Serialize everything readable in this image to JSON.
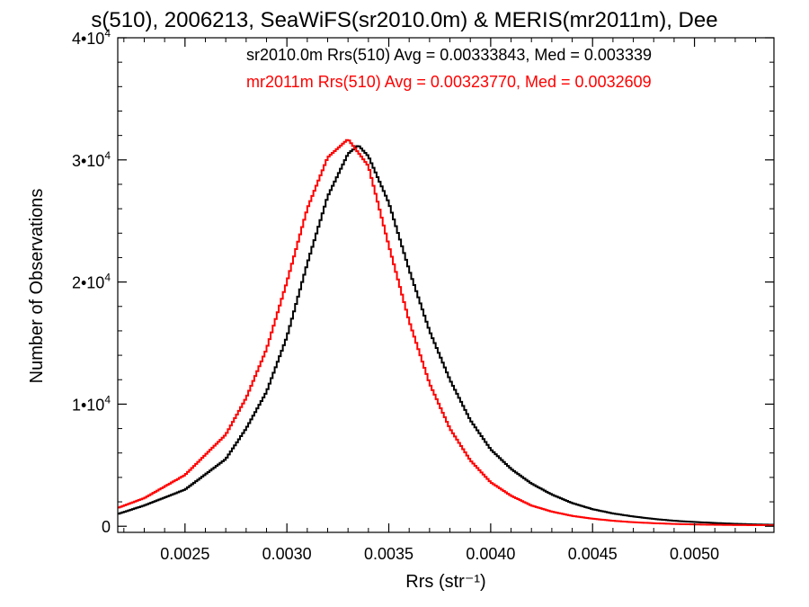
{
  "chart_data": {
    "type": "line",
    "title": "s(510), 2006213, SeaWiFS(sr2010.0m) & MERIS(mr2011m), Dee",
    "xlabel": "Rrs (str⁻¹)",
    "ylabel": "Number of Observations",
    "xlim": [
      0.00217,
      0.00539
    ],
    "ylim": [
      -500,
      40000
    ],
    "grid": false,
    "legend_position": "top-right",
    "x_ticks": [
      0.0025,
      0.003,
      0.0035,
      0.004,
      0.0045,
      0.005
    ],
    "x_tick_labels": [
      "0.0025",
      "0.0030",
      "0.0035",
      "0.0040",
      "0.0045",
      "0.0050"
    ],
    "y_ticks": [
      0,
      10000,
      20000,
      30000,
      40000
    ],
    "y_tick_labels": [
      {
        "base": "0",
        "exp": ""
      },
      {
        "base": "1•10",
        "exp": "4"
      },
      {
        "base": "2•10",
        "exp": "4"
      },
      {
        "base": "3•10",
        "exp": "4"
      },
      {
        "base": "4•10",
        "exp": "4"
      }
    ],
    "series": [
      {
        "name": "sr2010.0m",
        "label": "sr2010.0m Rrs(510) Avg = 0.00333843, Med = 0.003339",
        "color": "#000000",
        "x": [
          0.00217,
          0.0023,
          0.0025,
          0.0027,
          0.0028,
          0.0029,
          0.003,
          0.0031,
          0.0032,
          0.0033,
          0.00335,
          0.0034,
          0.0035,
          0.0036,
          0.0037,
          0.0038,
          0.0039,
          0.004,
          0.0041,
          0.0042,
          0.0043,
          0.0044,
          0.0045,
          0.0046,
          0.0047,
          0.0048,
          0.0049,
          0.005,
          0.0051,
          0.0052,
          0.0053,
          0.00539
        ],
        "y": [
          1000,
          1700,
          3000,
          5500,
          8000,
          11000,
          15500,
          21500,
          27000,
          30500,
          31200,
          30300,
          26500,
          21000,
          16000,
          12000,
          8700,
          6300,
          4700,
          3500,
          2600,
          1900,
          1400,
          1050,
          800,
          600,
          450,
          350,
          270,
          200,
          150,
          120
        ]
      },
      {
        "name": "mr2011m",
        "label": "mr2011m Rrs(510) Avg = 0.00323770, Med = 0.0032609",
        "color": "#ff0000",
        "x": [
          0.00217,
          0.0023,
          0.0025,
          0.0027,
          0.0028,
          0.0029,
          0.003,
          0.0031,
          0.0032,
          0.0033,
          0.0034,
          0.0035,
          0.0036,
          0.0037,
          0.0038,
          0.0039,
          0.004,
          0.0041,
          0.0042,
          0.0043,
          0.0044,
          0.0045,
          0.0046,
          0.0047,
          0.0048,
          0.0049,
          0.005,
          0.0051,
          0.0052,
          0.0053,
          0.00539
        ],
        "y": [
          1500,
          2300,
          4200,
          7500,
          10500,
          14500,
          20000,
          26000,
          30200,
          31700,
          29500,
          23000,
          16800,
          11700,
          8000,
          5400,
          3600,
          2500,
          1700,
          1200,
          850,
          620,
          450,
          330,
          250,
          190,
          150,
          120,
          100,
          90,
          80
        ]
      }
    ]
  }
}
